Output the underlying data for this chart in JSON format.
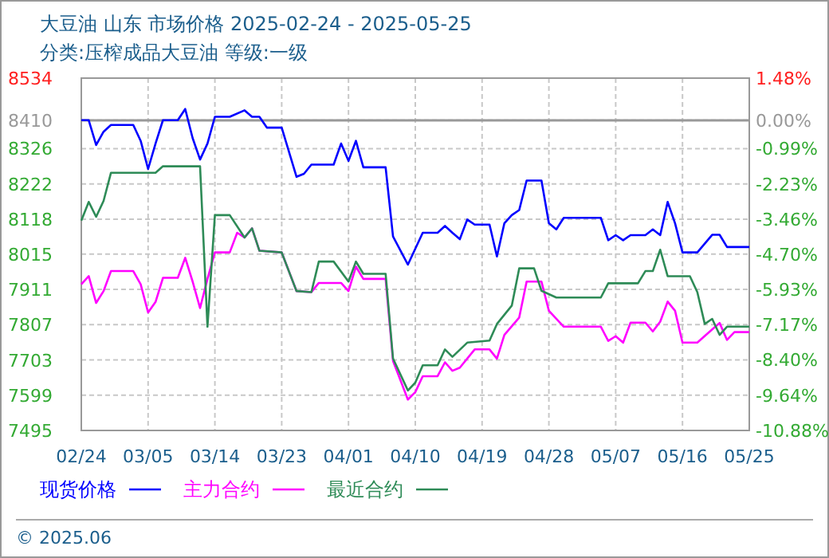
{
  "chart_data": {
    "type": "line",
    "title": "大豆油 山东 市场价格 2025-02-24 - 2025-05-25",
    "subtitle": "分类:压榨成品大豆油 等级:一级",
    "x": [
      "2025-02-24",
      "2025-02-25",
      "2025-02-26",
      "2025-02-27",
      "2025-02-28",
      "2025-03-03",
      "2025-03-04",
      "2025-03-05",
      "2025-03-06",
      "2025-03-07",
      "2025-03-09",
      "2025-03-10",
      "2025-03-11",
      "2025-03-12",
      "2025-03-13",
      "2025-03-14",
      "2025-03-16",
      "2025-03-18",
      "2025-03-19",
      "2025-03-20",
      "2025-03-21",
      "2025-03-23",
      "2025-03-25",
      "2025-03-26",
      "2025-03-27",
      "2025-03-30",
      "2025-03-31",
      "2025-04-01",
      "2025-04-02",
      "2025-04-03",
      "2025-04-06",
      "2025-04-07",
      "2025-04-09",
      "2025-04-11",
      "2025-04-13",
      "2025-04-14",
      "2025-04-15",
      "2025-04-16",
      "2025-04-17",
      "2025-04-18",
      "2025-04-20",
      "2025-04-21",
      "2025-04-22",
      "2025-04-23",
      "2025-04-24",
      "2025-04-25",
      "2025-04-27",
      "2025-04-28",
      "2025-04-29",
      "2025-04-30",
      "2025-05-05",
      "2025-05-06",
      "2025-05-07",
      "2025-05-08",
      "2025-05-09",
      "2025-05-11",
      "2025-05-12",
      "2025-05-13",
      "2025-05-14",
      "2025-05-15",
      "2025-05-16",
      "2025-05-18",
      "2025-05-20",
      "2025-05-21",
      "2025-05-22",
      "2025-05-25"
    ],
    "series": [
      {
        "name": "现货价格",
        "color": "#0000ff",
        "values": [
          8410,
          8410,
          8337,
          8376,
          8396,
          8396,
          8349,
          8266,
          8341,
          8410,
          8410,
          8443,
          8357,
          8294,
          8341,
          8420,
          8420,
          8439,
          8420,
          8420,
          8388,
          8388,
          8243,
          8252,
          8279,
          8279,
          8341,
          8290,
          8349,
          8271,
          8271,
          8067,
          7984,
          8078,
          8078,
          8098,
          8078,
          8059,
          8117,
          8102,
          8102,
          8008,
          8106,
          8130,
          8145,
          8232,
          8232,
          8106,
          8088,
          8122,
          8122,
          8056,
          8071,
          8056,
          8071,
          8071,
          8088,
          8071,
          8169,
          8106,
          8020,
          8020,
          8072,
          8072,
          8036,
          8036
        ]
      },
      {
        "name": "主力合约",
        "color": "#ff00ff",
        "x": [
          "2025-02-24",
          "2025-02-25",
          "2025-02-26",
          "2025-02-27",
          "2025-02-28",
          "2025-03-03",
          "2025-03-04",
          "2025-03-05",
          "2025-03-06",
          "2025-03-07",
          "2025-03-09",
          "2025-03-10",
          "2025-03-11",
          "2025-03-12",
          "2025-03-13",
          "2025-03-14",
          "2025-03-16",
          "2025-03-17",
          "2025-03-18",
          "2025-03-19",
          "2025-03-20",
          "2025-03-23",
          "2025-03-25",
          "2025-03-27",
          "2025-03-28",
          "2025-03-31",
          "2025-04-01",
          "2025-04-02",
          "2025-04-03",
          "2025-04-06",
          "2025-04-07",
          "2025-04-09",
          "2025-04-10",
          "2025-04-11",
          "2025-04-13",
          "2025-04-14",
          "2025-04-15",
          "2025-04-16",
          "2025-04-18",
          "2025-04-20",
          "2025-04-21",
          "2025-04-22",
          "2025-04-24",
          "2025-04-25",
          "2025-04-27",
          "2025-04-28",
          "2025-04-30",
          "2025-05-05",
          "2025-05-06",
          "2025-05-07",
          "2025-05-08",
          "2025-05-09",
          "2025-05-11",
          "2025-05-12",
          "2025-05-13",
          "2025-05-14",
          "2025-05-15",
          "2025-05-16",
          "2025-05-18",
          "2025-05-20",
          "2025-05-21",
          "2025-05-22",
          "2025-05-23",
          "2025-05-25"
        ],
        "values": [
          7926,
          7950,
          7871,
          7906,
          7965,
          7965,
          7926,
          7843,
          7874,
          7945,
          7945,
          8004,
          7934,
          7856,
          7942,
          8020,
          8020,
          8078,
          8064,
          8091,
          8025,
          8020,
          7906,
          7903,
          7930,
          7930,
          7906,
          7978,
          7942,
          7942,
          7700,
          7586,
          7608,
          7655,
          7655,
          7696,
          7671,
          7680,
          7734,
          7734,
          7707,
          7777,
          7828,
          7934,
          7934,
          7848,
          7801,
          7801,
          7759,
          7773,
          7754,
          7813,
          7813,
          7787,
          7816,
          7875,
          7848,
          7754,
          7754,
          7793,
          7812,
          7762,
          7785,
          7785
        ]
      },
      {
        "name": "最近合约",
        "color": "#2e8b57",
        "x": [
          "2025-02-24",
          "2025-02-25",
          "2025-02-26",
          "2025-02-27",
          "2025-02-28",
          "2025-03-06",
          "2025-03-07",
          "2025-03-12",
          "2025-03-13",
          "2025-03-14",
          "2025-03-16",
          "2025-03-18",
          "2025-03-19",
          "2025-03-20",
          "2025-03-23",
          "2025-03-25",
          "2025-03-27",
          "2025-03-28",
          "2025-03-30",
          "2025-04-01",
          "2025-04-02",
          "2025-04-03",
          "2025-04-06",
          "2025-04-07",
          "2025-04-09",
          "2025-04-10",
          "2025-04-11",
          "2025-04-13",
          "2025-04-14",
          "2025-04-15",
          "2025-04-17",
          "2025-04-20",
          "2025-04-21",
          "2025-04-23",
          "2025-04-24",
          "2025-04-26",
          "2025-04-27",
          "2025-04-29",
          "2025-05-05",
          "2025-05-06",
          "2025-05-10",
          "2025-05-11",
          "2025-05-12",
          "2025-05-13",
          "2025-05-14",
          "2025-05-17",
          "2025-05-18",
          "2025-05-19",
          "2025-05-20",
          "2025-05-21",
          "2025-05-22",
          "2025-05-25"
        ],
        "values": [
          8114,
          8169,
          8125,
          8172,
          8255,
          8255,
          8274,
          8274,
          7801,
          8130,
          8130,
          8064,
          8091,
          8025,
          8020,
          7906,
          7903,
          7993,
          7993,
          7934,
          7993,
          7957,
          7957,
          7707,
          7613,
          7636,
          7687,
          7687,
          7734,
          7712,
          7754,
          7760,
          7809,
          7863,
          7973,
          7973,
          7907,
          7887,
          7887,
          7929,
          7929,
          7965,
          7965,
          8028,
          7950,
          7950,
          7903,
          7809,
          7824,
          7777,
          7801,
          7801
        ]
      }
    ],
    "xlim": [
      "2025-02-24",
      "2025-05-25"
    ],
    "xticks": [
      {
        "value": "2025-02-24",
        "label": "02/24"
      },
      {
        "value": "2025-03-05",
        "label": "03/05"
      },
      {
        "value": "2025-03-14",
        "label": "03/14"
      },
      {
        "value": "2025-03-23",
        "label": "03/23"
      },
      {
        "value": "2025-04-01",
        "label": "04/01"
      },
      {
        "value": "2025-04-10",
        "label": "04/10"
      },
      {
        "value": "2025-04-19",
        "label": "04/19"
      },
      {
        "value": "2025-04-28",
        "label": "04/28"
      },
      {
        "value": "2025-05-07",
        "label": "05/07"
      },
      {
        "value": "2025-05-16",
        "label": "05/16"
      },
      {
        "value": "2025-05-25",
        "label": "05/25"
      }
    ],
    "ylim": [
      7495,
      8534
    ],
    "yticks": [
      7495,
      7599,
      7703,
      7807,
      7911,
      8015,
      8118,
      8222,
      8326,
      8410,
      8534
    ],
    "y2lim": [
      -10.88,
      1.48
    ],
    "y2ticks": [
      {
        "value": -10.88,
        "label": "-10.88%"
      },
      {
        "value": -9.64,
        "label": "-9.64%"
      },
      {
        "value": -8.4,
        "label": "-8.40%"
      },
      {
        "value": -7.17,
        "label": "-7.17%"
      },
      {
        "value": -5.93,
        "label": "-5.93%"
      },
      {
        "value": -4.7,
        "label": "-4.70%"
      },
      {
        "value": -3.46,
        "label": "-3.46%"
      },
      {
        "value": -2.23,
        "label": "-2.23%"
      },
      {
        "value": -0.99,
        "label": "-0.99%"
      },
      {
        "value": 0,
        "label": "0.00%"
      },
      {
        "value": 1.48,
        "label": "1.48%"
      }
    ],
    "ref_lines": [
      {
        "axis": "y2",
        "value": 0,
        "color": "#999999"
      }
    ],
    "grid": true,
    "legend": "bottom",
    "line_style": "solid",
    "marker": "none",
    "annotations": [
      "© 2025.06"
    ]
  }
}
